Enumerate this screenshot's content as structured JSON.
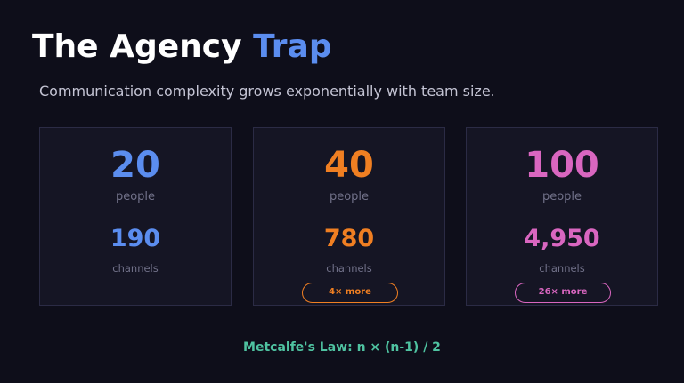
{
  "title": {
    "main": "The Agency",
    "accent": "Trap"
  },
  "subtitle": "Communication complexity grows exponentially with team size.",
  "cards": [
    {
      "people": "20",
      "people_label": "people",
      "channels": "190",
      "channels_label": "channels",
      "badge": null,
      "color": "#5b8def"
    },
    {
      "people": "40",
      "people_label": "people",
      "channels": "780",
      "channels_label": "channels",
      "badge": "4× more",
      "color": "#f07f22"
    },
    {
      "people": "100",
      "people_label": "people",
      "channels": "4,950",
      "channels_label": "channels",
      "badge": "26× more",
      "color": "#d966c0"
    }
  ],
  "footer": "Metcalfe's Law: n × (n-1) / 2",
  "colors": {
    "background": "#0e0e1a",
    "accent": "#5b8def",
    "footer": "#4fc3a1"
  }
}
